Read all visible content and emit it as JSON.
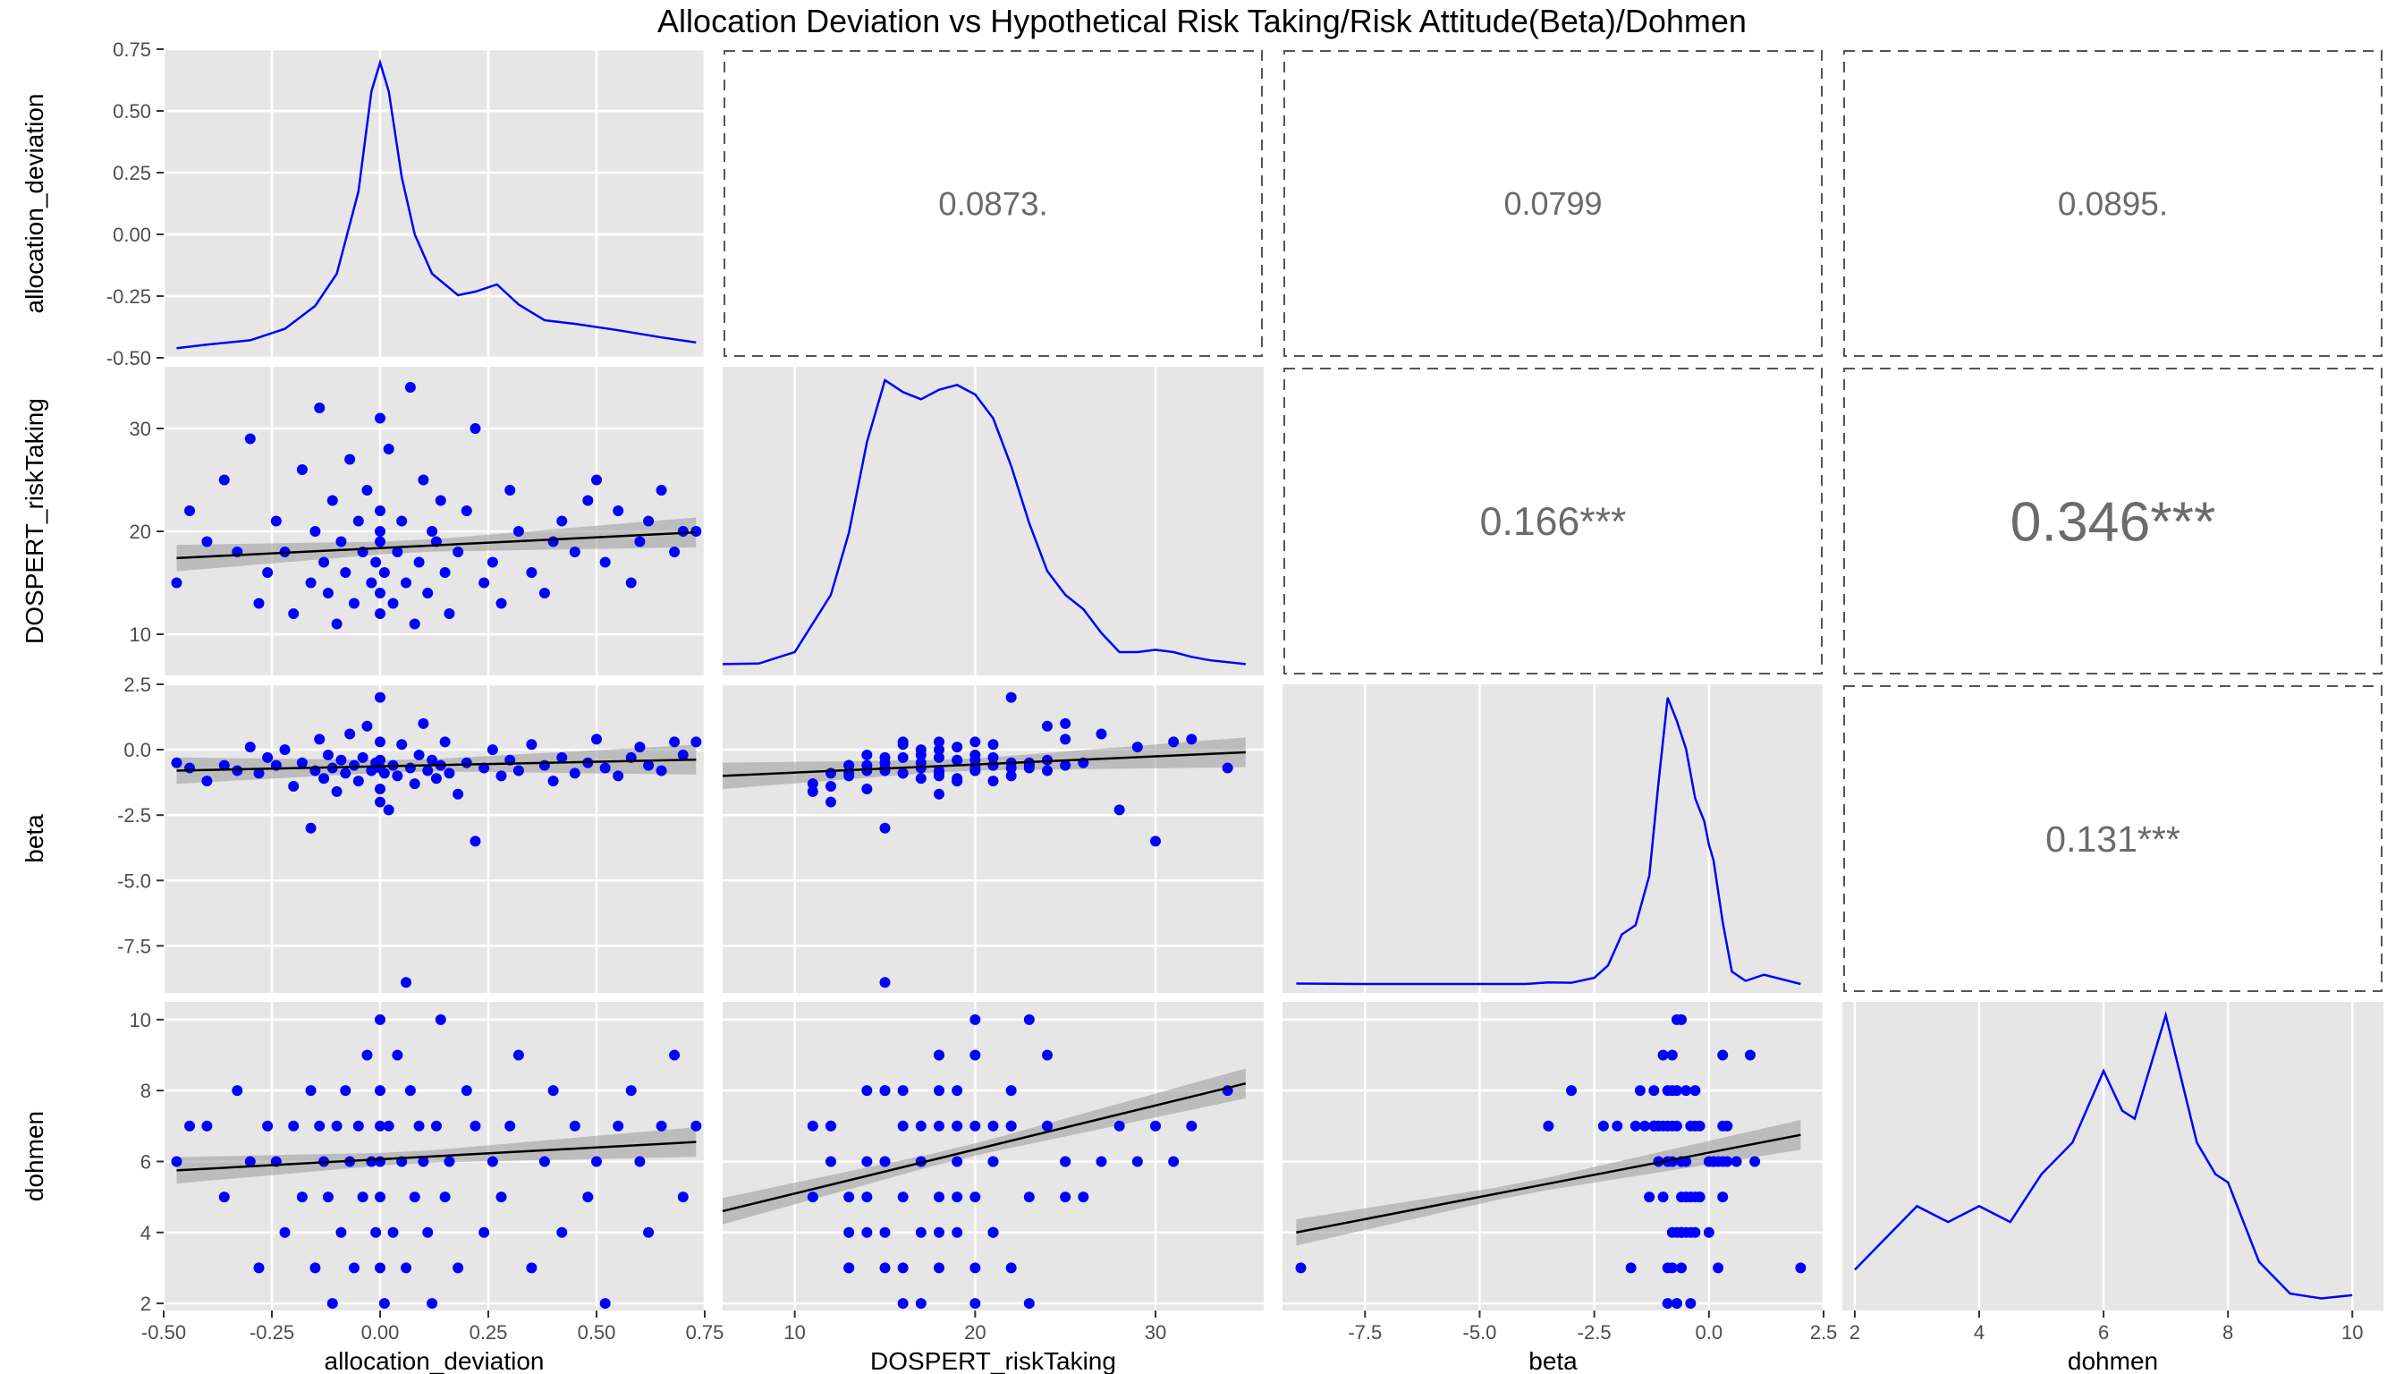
{
  "chart_data": {
    "type": "scatter",
    "title": "Allocation Deviation vs Hypothetical Risk Taking/Risk Attitude(Beta)/Dohmen",
    "variables": [
      {
        "name": "allocation_deviation",
        "range": [
          -0.5,
          0.75
        ],
        "ticks": [
          -0.5,
          -0.25,
          0.0,
          0.25,
          0.5,
          0.75
        ],
        "tick_labels": [
          "-0.50",
          "-0.25",
          "0.00",
          "0.25",
          "0.50",
          "0.75"
        ]
      },
      {
        "name": "DOSPERT_riskTaking",
        "range": [
          6,
          36
        ],
        "ticks": [
          10,
          20,
          30
        ],
        "tick_labels": [
          "10",
          "20",
          "30"
        ]
      },
      {
        "name": "beta",
        "range": [
          -9.3,
          2.5
        ],
        "ticks": [
          -7.5,
          -5.0,
          -2.5,
          0.0,
          2.5
        ],
        "tick_labels": [
          "-7.5",
          "-5.0",
          "-2.5",
          "0.0",
          "2.5"
        ]
      },
      {
        "name": "dohmen",
        "range": [
          1.8,
          10.5
        ],
        "ticks": [
          2,
          4,
          6,
          8,
          10
        ],
        "tick_labels": [
          "2",
          "4",
          "6",
          "8",
          "10"
        ]
      }
    ],
    "x_axis_labels": {
      "allocation_deviation": [
        "-0.50",
        "-0.25",
        "0.00",
        "0.25",
        "0.50",
        "0.75"
      ],
      "DOSPERT_riskTaking": [
        "10",
        "20",
        "30"
      ],
      "beta": [
        "-7.5",
        "-5.0",
        "-2.5",
        "0.0",
        "2.5"
      ],
      "dohmen": [
        "2",
        "4",
        "6",
        "8",
        "10"
      ]
    },
    "correlations": [
      {
        "row": 0,
        "col": 1,
        "label": "0.0873.",
        "value": 0.0873
      },
      {
        "row": 0,
        "col": 2,
        "label": "0.0799",
        "value": 0.0799
      },
      {
        "row": 0,
        "col": 3,
        "label": "0.0895.",
        "value": 0.0895
      },
      {
        "row": 1,
        "col": 2,
        "label": "0.166***",
        "value": 0.166
      },
      {
        "row": 1,
        "col": 3,
        "label": "0.346***",
        "value": 0.346
      },
      {
        "row": 2,
        "col": 3,
        "label": "0.131***",
        "value": 0.131
      }
    ],
    "densities": [
      {
        "var": "allocation_deviation",
        "x": [
          -0.47,
          -0.4,
          -0.3,
          -0.22,
          -0.15,
          -0.1,
          -0.05,
          -0.02,
          0.0,
          0.02,
          0.05,
          0.08,
          0.12,
          0.18,
          0.22,
          0.27,
          0.32,
          0.38,
          0.45,
          0.55,
          0.65,
          0.73
        ],
        "y": [
          0.01,
          0.06,
          0.12,
          0.28,
          0.6,
          1.05,
          2.2,
          3.6,
          4.0,
          3.6,
          2.4,
          1.6,
          1.05,
          0.75,
          0.8,
          0.9,
          0.62,
          0.4,
          0.35,
          0.26,
          0.16,
          0.09
        ]
      },
      {
        "var": "DOSPERT_riskTaking",
        "x": [
          6,
          8,
          10,
          12,
          13,
          14,
          15,
          16,
          17,
          18,
          19,
          20,
          21,
          22,
          23,
          24,
          25,
          26,
          27,
          28,
          29,
          30,
          31,
          32,
          33,
          35
        ],
        "y": [
          0.005,
          0.006,
          0.03,
          0.15,
          0.28,
          0.47,
          0.6,
          0.575,
          0.56,
          0.58,
          0.59,
          0.57,
          0.52,
          0.42,
          0.3,
          0.2,
          0.15,
          0.12,
          0.07,
          0.03,
          0.03,
          0.035,
          0.03,
          0.02,
          0.013,
          0.005
        ]
      },
      {
        "var": "beta",
        "x": [
          -9,
          -7.5,
          -5,
          -4,
          -3.5,
          -3,
          -2.5,
          -2.2,
          -1.9,
          -1.6,
          -1.3,
          -1.1,
          -0.9,
          -0.7,
          -0.5,
          -0.3,
          -0.1,
          0.0,
          0.1,
          0.3,
          0.5,
          0.8,
          1.2,
          2.0
        ],
        "y": [
          0.003,
          0.0,
          0.0,
          0.0,
          0.01,
          0.008,
          0.04,
          0.12,
          0.32,
          0.38,
          0.7,
          1.3,
          1.85,
          1.7,
          1.52,
          1.2,
          1.05,
          0.9,
          0.8,
          0.4,
          0.08,
          0.02,
          0.06,
          0.0
        ]
      },
      {
        "var": "dohmen",
        "x": [
          2.0,
          2.5,
          3.0,
          3.5,
          4.0,
          4.5,
          5.0,
          5.5,
          6.0,
          6.3,
          6.5,
          7.0,
          7.5,
          7.8,
          8.0,
          8.5,
          9.0,
          9.5,
          10.0
        ],
        "y": [
          0.02,
          0.04,
          0.06,
          0.05,
          0.06,
          0.05,
          0.08,
          0.1,
          0.145,
          0.12,
          0.115,
          0.18,
          0.1,
          0.08,
          0.075,
          0.025,
          0.005,
          0.002,
          0.004
        ]
      }
    ],
    "regression_lines": [
      {
        "xvar": "allocation_deviation",
        "yvar": "DOSPERT_riskTaking",
        "x": [
          -0.47,
          0.73
        ],
        "y": [
          17.4,
          19.9
        ]
      },
      {
        "xvar": "allocation_deviation",
        "yvar": "beta",
        "x": [
          -0.47,
          0.73
        ],
        "y": [
          -0.8,
          -0.38
        ]
      },
      {
        "xvar": "DOSPERT_riskTaking",
        "yvar": "beta",
        "x": [
          6,
          35
        ],
        "y": [
          -1.0,
          -0.1
        ]
      },
      {
        "xvar": "allocation_deviation",
        "yvar": "dohmen",
        "x": [
          -0.47,
          0.73
        ],
        "y": [
          5.75,
          6.55
        ]
      },
      {
        "xvar": "DOSPERT_riskTaking",
        "yvar": "dohmen",
        "x": [
          6,
          35
        ],
        "y": [
          4.6,
          8.2
        ]
      },
      {
        "xvar": "beta",
        "yvar": "dohmen",
        "x": [
          -9,
          2
        ],
        "y": [
          4.0,
          6.75
        ]
      }
    ],
    "scatter_samples": {
      "allocation_deviation": [
        -0.47,
        -0.44,
        -0.4,
        -0.36,
        -0.33,
        -0.3,
        -0.28,
        -0.26,
        -0.24,
        -0.22,
        -0.2,
        -0.18,
        -0.16,
        -0.15,
        -0.14,
        -0.13,
        -0.12,
        -0.11,
        -0.1,
        -0.09,
        -0.08,
        -0.07,
        -0.06,
        -0.05,
        -0.04,
        -0.03,
        -0.02,
        -0.01,
        0.0,
        0.0,
        0.0,
        0.0,
        0.0,
        0.0,
        0.01,
        0.02,
        0.03,
        0.04,
        0.05,
        0.06,
        0.07,
        0.08,
        0.09,
        0.1,
        0.11,
        0.12,
        0.13,
        0.14,
        0.15,
        0.16,
        0.18,
        0.2,
        0.22,
        0.24,
        0.26,
        0.28,
        0.3,
        0.32,
        0.35,
        0.38,
        0.4,
        0.42,
        0.45,
        0.48,
        0.5,
        0.52,
        0.55,
        0.58,
        0.6,
        0.62,
        0.65,
        0.68,
        0.7,
        0.73
      ],
      "DOSPERT_riskTaking": [
        15,
        22,
        19,
        25,
        18,
        29,
        13,
        16,
        21,
        18,
        12,
        26,
        15,
        20,
        32,
        17,
        14,
        23,
        11,
        19,
        16,
        27,
        13,
        21,
        18,
        24,
        15,
        17,
        20,
        12,
        22,
        31,
        14,
        19,
        16,
        28,
        13,
        18,
        21,
        15,
        34,
        11,
        17,
        25,
        14,
        20,
        19,
        23,
        16,
        12,
        18,
        22,
        30,
        15,
        17,
        13,
        24,
        20,
        16,
        14,
        19,
        21,
        18,
        23,
        25,
        17,
        22,
        15,
        19,
        21,
        24,
        18,
        20,
        20
      ],
      "beta": [
        -0.5,
        -0.7,
        -1.2,
        -0.6,
        -0.8,
        0.1,
        -0.9,
        -0.3,
        -0.6,
        0.0,
        -1.4,
        -0.5,
        -3.0,
        -0.8,
        0.4,
        -1.1,
        -0.2,
        -0.7,
        -1.6,
        -0.4,
        -0.9,
        0.6,
        -0.6,
        -1.2,
        -0.3,
        0.9,
        -0.8,
        -0.5,
        -0.7,
        -2.0,
        2.0,
        0.3,
        -1.5,
        -0.4,
        -0.9,
        -2.3,
        -0.6,
        -1.0,
        0.2,
        -8.9,
        -0.7,
        -1.3,
        -0.2,
        1.0,
        -0.8,
        -0.4,
        -1.1,
        -0.6,
        0.3,
        -0.9,
        -1.7,
        -0.5,
        -3.5,
        -0.7,
        0.0,
        -1.0,
        -0.4,
        -0.8,
        0.2,
        -0.6,
        -1.2,
        -0.3,
        -0.9,
        -0.5,
        0.4,
        -0.7,
        -1.0,
        -0.3,
        0.1,
        -0.6,
        -0.8,
        0.3,
        -0.2,
        0.3
      ],
      "dohmen": [
        6,
        7,
        7,
        5,
        8,
        6,
        3,
        7,
        6,
        4,
        7,
        5,
        8,
        3,
        7,
        6,
        5,
        2,
        7,
        4,
        8,
        6,
        3,
        7,
        5,
        9,
        6,
        4,
        10,
        7,
        3,
        6,
        8,
        5,
        2,
        7,
        4,
        9,
        6,
        3,
        8,
        5,
        7,
        6,
        4,
        2,
        7,
        10,
        5,
        6,
        3,
        8,
        7,
        4,
        6,
        5,
        7,
        9,
        3,
        6,
        8,
        4,
        7,
        5,
        6,
        2,
        7,
        8,
        6,
        4,
        7,
        9,
        5,
        7
      ]
    }
  }
}
